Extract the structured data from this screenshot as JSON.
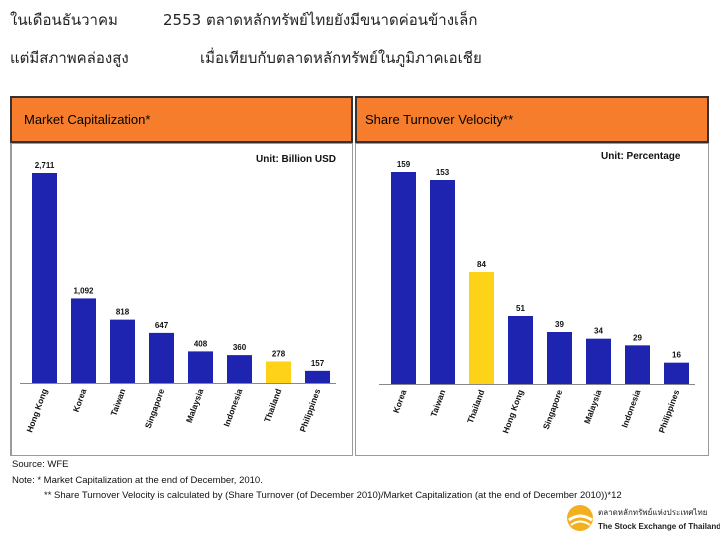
{
  "header": {
    "line1_left": "ในเดือนธันวาคม",
    "line1_right": "2553 ตลาดหลักทรัพย์ไทยยังมีขนาดค่อนข้างเล็ก",
    "line2_left": "แต่มีสภาพคล่องสูง",
    "line2_right": "เมื่อเทียบกับตลาดหลักทรัพย์ในภูมิภาคเอเชีย"
  },
  "colors": {
    "header_bg": "#f57d2b",
    "bar_default": "#1f24b0",
    "bar_highlight": "#ffd21a"
  },
  "chart_data": [
    {
      "type": "bar",
      "title": "Market Capitalization*",
      "unit": "Unit: Billion USD",
      "categories": [
        "Hong Kong",
        "Korea",
        "Taiwan",
        "Singapore",
        "Malaysia",
        "Indonesia",
        "Thailand",
        "Philippines"
      ],
      "values": [
        2711,
        1092,
        818,
        647,
        408,
        360,
        278,
        157
      ],
      "value_labels": [
        "2,711",
        "1,092",
        "818",
        "647",
        "408",
        "360",
        "278",
        "157"
      ],
      "highlight": "Thailand",
      "ylim": [
        0,
        2711
      ]
    },
    {
      "type": "bar",
      "title": "Share Turnover Velocity**",
      "unit": "Unit: Percentage",
      "categories": [
        "Korea",
        "Taiwan",
        "Thailand",
        "Hong Kong",
        "Singapore",
        "Malaysia",
        "Indonesia",
        "Philippines"
      ],
      "values": [
        159,
        153,
        84,
        51,
        39,
        34,
        29,
        16
      ],
      "value_labels": [
        "159",
        "153",
        "84",
        "51",
        "39",
        "34",
        "29",
        "16"
      ],
      "highlight": "Thailand",
      "ylim": [
        0,
        159
      ]
    }
  ],
  "footnotes": {
    "source": "Source: WFE",
    "note1": "Note: *  Market Capitalization at the end of December, 2010.",
    "note2": "** Share Turnover Velocity is calculated by (Share Turnover (of December 2010)/Market Capitalization (at the end of December 2010))*12"
  },
  "logo": {
    "thai": "ตลาดหลักทรัพย์แห่งประเทศไทย",
    "english": "The Stock Exchange of Thailand"
  }
}
